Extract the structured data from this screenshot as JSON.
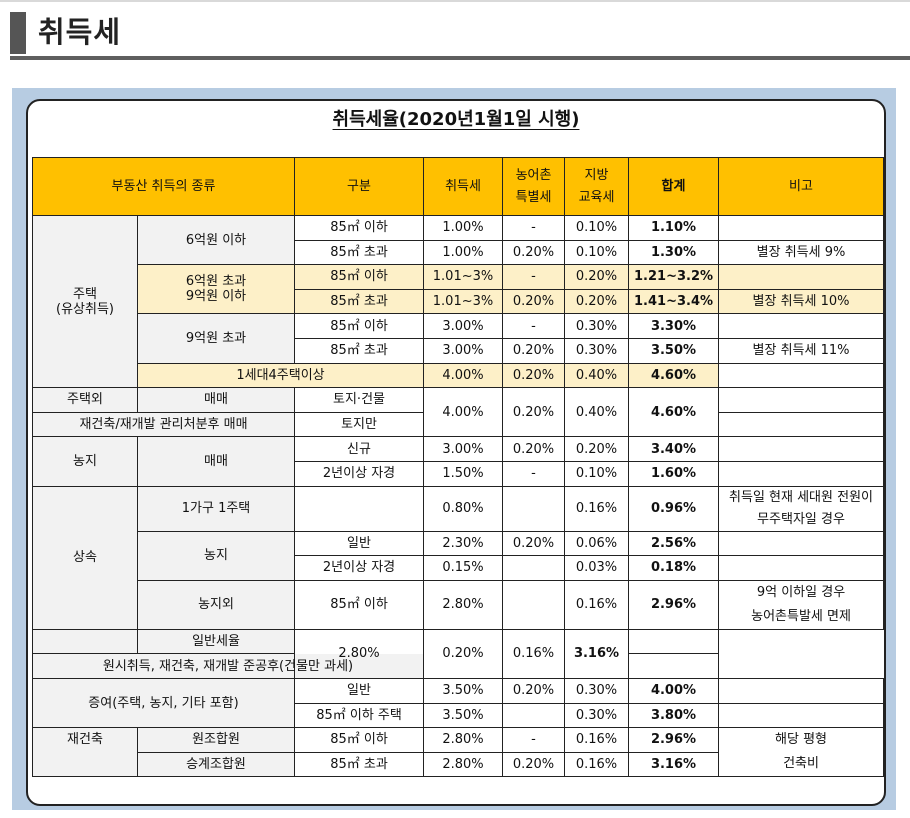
{
  "page": {
    "heading": "취득세"
  },
  "card": {
    "title": "취득세율(2020년1월1일 시행)"
  },
  "header": {
    "kind": "부동산 취득의 종류",
    "category": "구분",
    "acq_tax": "취득세",
    "rural_tax": [
      "농어촌",
      "특별세"
    ],
    "edu_tax": [
      "지방",
      "교육세"
    ],
    "total": "합계",
    "note": "비고"
  },
  "housing": {
    "label": [
      "주택",
      "(유상취득)"
    ],
    "under6": {
      "label": "6억원 이하",
      "rows": [
        {
          "area": "85㎡ 이하",
          "acq": "1.00%",
          "rural": "-",
          "edu": "0.10%",
          "total": "1.10%",
          "note": ""
        },
        {
          "area": "85㎡ 초과",
          "acq": "1.00%",
          "rural": "0.20%",
          "edu": "0.10%",
          "total": "1.30%",
          "note": "별장 취득세 9%"
        }
      ]
    },
    "mid": {
      "label": [
        "6억원 초과",
        "9억원 이하"
      ],
      "rows": [
        {
          "area": "85㎡ 이하",
          "acq": "1.01~3%",
          "rural": "-",
          "edu": "0.20%",
          "total": "1.21~3.2%",
          "note": ""
        },
        {
          "area": "85㎡ 초과",
          "acq": "1.01~3%",
          "rural": "0.20%",
          "edu": "0.20%",
          "total": "1.41~3.4%",
          "note": "별장 취득세 10%"
        }
      ]
    },
    "over9": {
      "label": "9억원 초과",
      "rows": [
        {
          "area": "85㎡ 이하",
          "acq": "3.00%",
          "rural": "-",
          "edu": "0.30%",
          "total": "3.30%",
          "note": ""
        },
        {
          "area": "85㎡ 초과",
          "acq": "3.00%",
          "rural": "0.20%",
          "edu": "0.30%",
          "total": "3.50%",
          "note": "별장 취득세 11%"
        }
      ]
    },
    "four_homes": {
      "label": "1세대4주택이상",
      "acq": "4.00%",
      "rural": "0.20%",
      "edu": "0.40%",
      "total": "4.60%"
    }
  },
  "non_housing": {
    "label": "주택외",
    "trade": "매매",
    "land_building": "토지·건물",
    "reconstruction": "재건축/재개발 관리처분후 매매",
    "land_only": "토지만",
    "acq": "4.00%",
    "rural": "0.20%",
    "edu": "0.40%",
    "total": "4.60%"
  },
  "farmland": {
    "label": "농지",
    "trade": "매매",
    "rows": [
      {
        "area": "신규",
        "acq": "3.00%",
        "rural": "0.20%",
        "edu": "0.20%",
        "total": "3.40%"
      },
      {
        "area": "2년이상 자경",
        "acq": "1.50%",
        "rural": "-",
        "edu": "0.10%",
        "total": "1.60%"
      }
    ]
  },
  "inheritance": {
    "label": "상속",
    "one_home": {
      "label": "1가구 1주택",
      "acq": "0.80%",
      "edu": "0.16%",
      "total": "0.96%",
      "note": "취득일 현재 세대원 전원이 무주택자일 경우"
    },
    "farm": {
      "label": "농지",
      "rows": [
        {
          "area": "일반",
          "acq": "2.30%",
          "rural": "0.20%",
          "edu": "0.06%",
          "total": "2.56%"
        },
        {
          "area": "2년이상 자경",
          "acq": "0.15%",
          "edu": "0.03%",
          "total": "0.18%"
        }
      ]
    },
    "nonfarm": {
      "label": "농지외",
      "area": "85㎡ 이하",
      "acq": "2.80%",
      "edu": "0.16%",
      "total": "2.96%",
      "note": [
        "9억 이하일 경우",
        "농어촌특발세 면제"
      ]
    },
    "general_rate": "일반세율",
    "original": "원시취득, 재건축, 재개발 준공후(건물만 과세)",
    "general_row": {
      "acq": "2.80%",
      "rural": "0.20%",
      "edu": "0.16%",
      "total": "3.16%"
    }
  },
  "gift": {
    "label": "증여(주택, 농지, 기타 포함)",
    "rows": [
      {
        "area": "일반",
        "acq": "3.50%",
        "rural": "0.20%",
        "edu": "0.30%",
        "total": "4.00%"
      },
      {
        "area": "85㎡ 이하 주택",
        "acq": "3.50%",
        "edu": "0.30%",
        "total": "3.80%"
      }
    ]
  },
  "rebuild": {
    "label": "재건축",
    "rows": [
      {
        "member": "원조합원",
        "area": "85㎡ 이하",
        "acq": "2.80%",
        "rural": "-",
        "edu": "0.16%",
        "total": "2.96%"
      },
      {
        "member": "승계조합원",
        "area": "85㎡ 초과",
        "acq": "2.80%",
        "rural": "0.20%",
        "edu": "0.16%",
        "total": "3.16%"
      }
    ],
    "note": [
      "해당 평형",
      "건축비"
    ]
  }
}
